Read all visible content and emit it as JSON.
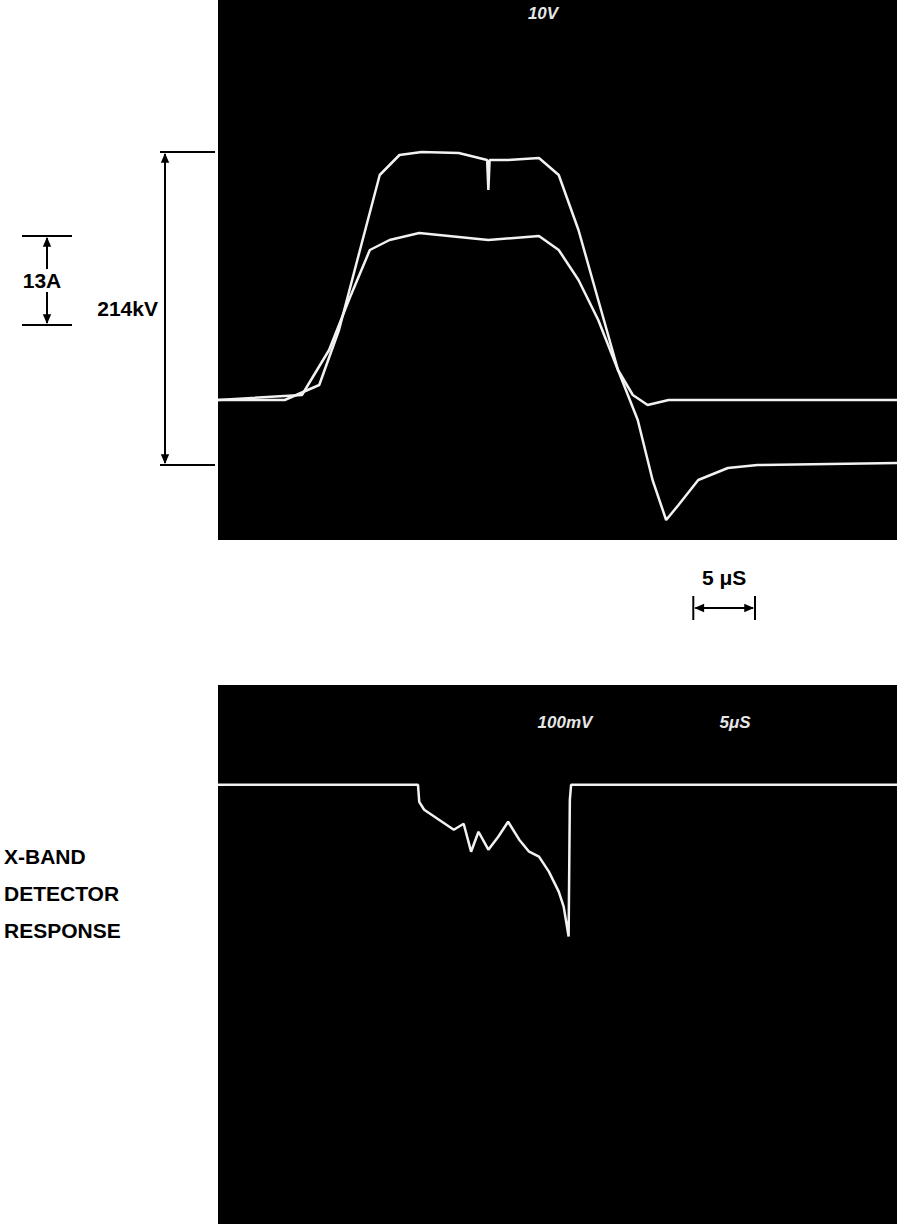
{
  "chart_data": [
    {
      "type": "line",
      "annotations": [
        "10V"
      ],
      "scale_bars": [
        {
          "label": "13A",
          "axis": "y",
          "from": 7.5,
          "to": 16.4
        },
        {
          "label": "214kV",
          "axis": "y",
          "from": -6.5,
          "to": 24.8
        },
        {
          "label": "5 μS",
          "axis": "x",
          "from": 38.5,
          "to": 43.5
        }
      ],
      "xlim": [
        0,
        55
      ],
      "ylim": [
        -14,
        40
      ],
      "tick_labels": false,
      "grid": false,
      "series": [
        {
          "color": "#f2f2f2",
          "x": [
            0,
            5.4,
            8.2,
            9.8,
            11.5,
            13.1,
            14.7,
            16.5,
            19.5,
            21.8,
            21.9,
            22.0,
            23.5,
            26.0,
            27.6,
            29.2,
            30.8,
            32.4,
            33.6,
            34.8,
            36.5,
            55
          ],
          "values": [
            0,
            0,
            1.5,
            7,
            15,
            22.5,
            24.5,
            24.8,
            24.7,
            24,
            21,
            24,
            24,
            24.2,
            22.5,
            17,
            10,
            3,
            0.5,
            -0.5,
            0,
            0
          ]
        },
        {
          "color": "#f2f2f2",
          "x": [
            0,
            6.8,
            9.0,
            10.6,
            12.3,
            13.9,
            16.3,
            19.5,
            21.9,
            26.0,
            27.6,
            29.2,
            30.8,
            32.4,
            34.0,
            35.2,
            36.3,
            37.3,
            38.9,
            41.3,
            43.7,
            55
          ],
          "values": [
            0,
            0.5,
            5,
            10,
            15,
            16,
            16.7,
            16.3,
            16,
            16.4,
            15,
            12,
            8,
            3,
            -2,
            -8,
            -12,
            -10.5,
            -8,
            -6.8,
            -6.5,
            -6.3
          ]
        }
      ]
    },
    {
      "type": "line",
      "title": "X-BAND DETECTOR RESPONSE",
      "annotations": [
        "100mV",
        "5μS"
      ],
      "xlim": [
        0,
        55
      ],
      "ylim": [
        -44,
        10
      ],
      "tick_labels": false,
      "grid": false,
      "series": [
        {
          "color": "#f2f2f2",
          "x": [
            0,
            16.2,
            16.3,
            16.7,
            17.9,
            19.1,
            19.9,
            20.5,
            21.1,
            21.9,
            22.7,
            23.5,
            24.4,
            25.2,
            26.0,
            26.8,
            27.2,
            27.6,
            28.0,
            28.4,
            28.5,
            28.6,
            55
          ],
          "values": [
            0,
            0,
            -1.7,
            -2.5,
            -3.5,
            -4.5,
            -3.9,
            -6.7,
            -4.7,
            -6.5,
            -5.2,
            -3.7,
            -5.5,
            -6.7,
            -7.2,
            -8.7,
            -9.7,
            -10.7,
            -12.2,
            -15.2,
            -1.5,
            0,
            0
          ]
        }
      ]
    }
  ]
}
